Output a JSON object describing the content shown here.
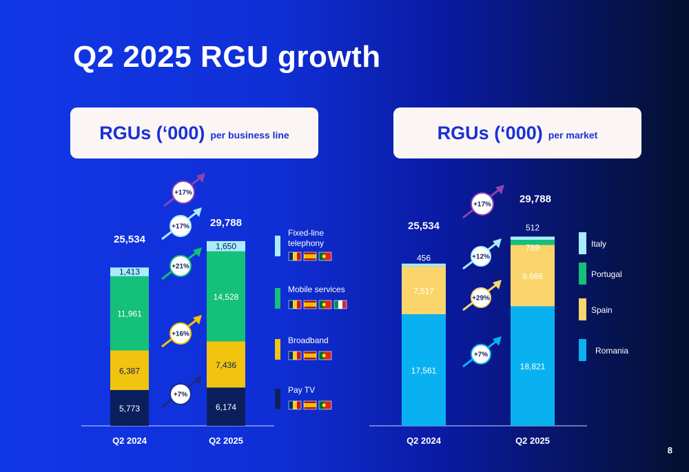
{
  "title": "Q2 2025 RGU growth",
  "page_number": "8",
  "header_left": {
    "main": "RGUs (‘000)",
    "sub": "per business line"
  },
  "header_right": {
    "main": "RGUs (‘000)",
    "sub": "per market"
  },
  "colors": {
    "fixed_line": "#a9ecfb",
    "mobile": "#14c07a",
    "broadband": "#f1c40f",
    "pay_tv": "#0b1f5c",
    "italy": "#a9ecfb",
    "portugal": "#14c07a",
    "spain": "#fbd56b",
    "romania": "#0ab1f0"
  },
  "chart_data": [
    {
      "type": "bar",
      "stacked": true,
      "categories": [
        "Q2 2024",
        "Q2 2025"
      ],
      "totals": [
        "25,534",
        "29,788"
      ],
      "series": [
        {
          "name": "Pay TV",
          "key": "pay_tv",
          "values": [
            5773,
            6174
          ],
          "labels": [
            "5,773",
            "6,174"
          ],
          "growth": "+7%",
          "flags": [
            "romania-flag",
            "spain-flag",
            "portugal-flag"
          ]
        },
        {
          "name": "Broadband",
          "key": "broadband",
          "values": [
            6387,
            7436
          ],
          "labels": [
            "6,387",
            "7,436"
          ],
          "growth": "+16%",
          "flags": [
            "romania-flag",
            "spain-flag",
            "portugal-flag"
          ]
        },
        {
          "name": "Mobile services",
          "key": "mobile",
          "values": [
            11961,
            14528
          ],
          "labels": [
            "11,961",
            "14,528"
          ],
          "growth": "+21%",
          "flags": [
            "romania-flag",
            "spain-flag",
            "portugal-flag",
            "italy-flag"
          ]
        },
        {
          "name": "Fixed-line telephony",
          "key": "fixed_line",
          "values": [
            1413,
            1650
          ],
          "labels": [
            "1,413",
            "1,650"
          ],
          "growth": "+17%",
          "flags": [
            "romania-flag",
            "spain-flag",
            "portugal-flag"
          ]
        }
      ],
      "total_growth": "+17%"
    },
    {
      "type": "bar",
      "stacked": true,
      "categories": [
        "Q2 2024",
        "Q2 2025"
      ],
      "totals": [
        "25,534",
        "29,788"
      ],
      "series": [
        {
          "name": "Romania",
          "key": "romania",
          "values": [
            17561,
            18821
          ],
          "labels": [
            "17,561",
            "18,821"
          ],
          "growth": "+7%"
        },
        {
          "name": "Spain",
          "key": "spain",
          "values": [
            7517,
            9666
          ],
          "labels": [
            "7,517",
            "9,666"
          ],
          "growth": "+29%"
        },
        {
          "name": "Portugal",
          "key": "portugal",
          "values": [
            0,
            789
          ],
          "labels": [
            "",
            "789"
          ],
          "growth": ""
        },
        {
          "name": "Italy",
          "key": "italy",
          "values": [
            456,
            512
          ],
          "labels": [
            "456",
            "512"
          ],
          "growth": "+12%"
        }
      ],
      "total_growth": "+17%"
    }
  ]
}
